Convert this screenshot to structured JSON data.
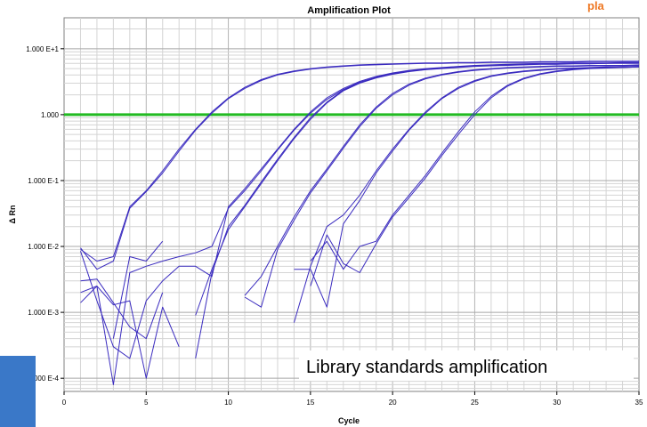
{
  "chart_data": {
    "type": "line",
    "title": "Amplification Plot",
    "xlabel": "Cycle",
    "ylabel": "Δ Rn",
    "xlim": [
      0,
      35
    ],
    "ylim": [
      5e-05,
      10
    ],
    "y_scale": "log",
    "grid": true,
    "x_ticks": [
      0,
      5,
      10,
      15,
      20,
      25,
      30,
      35
    ],
    "x_tick_labels": [
      "0",
      "5",
      "10",
      "15",
      "20",
      "25",
      "30",
      "35"
    ],
    "y_ticks": [
      10,
      1,
      0.1,
      0.01,
      0.001,
      0.0001
    ],
    "y_tick_labels": [
      "1.000 E+1",
      "1.000",
      "1.000 E-1",
      "1.000 E-2",
      "1.000 E-3",
      "1.000 E-4"
    ],
    "threshold": {
      "value": 1.0,
      "color": "#22bb22"
    },
    "series_color": "#3a2bbf",
    "annotation": "Library standards amplification",
    "header_fragment": {
      "text": "pla",
      "color": "#ee7722"
    },
    "accent_color": "#3a78c8",
    "series": [
      {
        "x": [
          1,
          2,
          3,
          4,
          5,
          6,
          7,
          8,
          9,
          10,
          11,
          12,
          13,
          14,
          15,
          16,
          17,
          18,
          19,
          20,
          21,
          22,
          23,
          24,
          25,
          26,
          27,
          28,
          29,
          30,
          31,
          32,
          33,
          34,
          35
        ],
        "y": [
          0.009,
          0.006,
          0.007,
          0.04,
          0.07,
          0.14,
          0.3,
          0.6,
          1.1,
          1.8,
          2.6,
          3.4,
          4.1,
          4.6,
          5.0,
          5.3,
          5.5,
          5.7,
          5.8,
          5.9,
          6.0,
          6.1,
          6.1,
          6.2,
          6.2,
          6.3,
          6.3,
          6.3,
          6.4,
          6.4,
          6.4,
          6.5,
          6.5,
          6.5,
          6.5
        ]
      },
      {
        "x": [
          1,
          2,
          3,
          4,
          5,
          6,
          7,
          8,
          9,
          10,
          11,
          12,
          13,
          14,
          15,
          16,
          17,
          18,
          19,
          20,
          21,
          22,
          23,
          24,
          25,
          26,
          27,
          28,
          29,
          30,
          31,
          32,
          33,
          34,
          35
        ],
        "y": [
          0.0095,
          0.0045,
          0.006,
          0.038,
          0.068,
          0.13,
          0.28,
          0.58,
          1.05,
          1.75,
          2.5,
          3.3,
          4.0,
          4.5,
          4.9,
          5.2,
          5.4,
          5.6,
          5.7,
          5.8,
          5.9,
          6.0,
          6.0,
          6.1,
          6.1,
          6.2,
          6.2,
          6.2,
          6.3,
          6.3,
          6.3,
          6.4,
          6.4,
          6.4,
          6.4
        ]
      },
      {
        "x": [
          1,
          2,
          3,
          4,
          5,
          6,
          7,
          8,
          9,
          10,
          11,
          12,
          13,
          14,
          15,
          16,
          17,
          18,
          19,
          20,
          21,
          22,
          23,
          24,
          25,
          26,
          27,
          28,
          29,
          30,
          31,
          32,
          33,
          34,
          35
        ],
        "y": [
          0.0085,
          0.0015,
          0.0003,
          0.0002,
          0.0015,
          0.003,
          0.005,
          0.005,
          0.0035,
          0.04,
          0.075,
          0.15,
          0.3,
          0.6,
          1.1,
          1.8,
          2.5,
          3.2,
          3.8,
          4.3,
          4.7,
          5.0,
          5.2,
          5.4,
          5.6,
          5.7,
          5.8,
          5.9,
          6.0,
          6.0,
          6.1,
          6.1,
          6.1,
          6.2,
          6.2
        ]
      },
      {
        "x": [
          1,
          2,
          3,
          4,
          5,
          6,
          7,
          8,
          9,
          10,
          11,
          12,
          13,
          14,
          15,
          16,
          17,
          18,
          19,
          20,
          21,
          22,
          23,
          24,
          25,
          26,
          27,
          28,
          29,
          30,
          31,
          32,
          33,
          34,
          35
        ],
        "y": [
          0.002,
          0.0025,
          8e-05,
          0.004,
          0.005,
          0.006,
          0.007,
          0.008,
          0.01,
          0.038,
          0.07,
          0.14,
          0.29,
          0.58,
          1.05,
          1.7,
          2.4,
          3.1,
          3.7,
          4.2,
          4.6,
          4.9,
          5.1,
          5.3,
          5.5,
          5.6,
          5.7,
          5.8,
          5.9,
          5.9,
          6.0,
          6.0,
          6.0,
          6.1,
          6.1
        ]
      },
      {
        "x": [
          8,
          9,
          10,
          11,
          12,
          13,
          14,
          15,
          16,
          17,
          18,
          19,
          20,
          21,
          22,
          23,
          24,
          25,
          26,
          27,
          28,
          29,
          30,
          31,
          32,
          33,
          34,
          35
        ],
        "y": [
          0.0009,
          0.0045,
          0.018,
          0.04,
          0.09,
          0.2,
          0.43,
          0.85,
          1.5,
          2.3,
          3.0,
          3.6,
          4.1,
          4.5,
          4.8,
          5.0,
          5.2,
          5.4,
          5.5,
          5.6,
          5.7,
          5.8,
          5.8,
          5.9,
          5.9,
          6.0,
          6.0,
          6.0
        ]
      },
      {
        "x": [
          8,
          9,
          10,
          11,
          12,
          13,
          14,
          15,
          16,
          17,
          18,
          19,
          20,
          21,
          22,
          23,
          24,
          25,
          26,
          27,
          28,
          29,
          30,
          31,
          32,
          33,
          34,
          35
        ],
        "y": [
          0.0002,
          0.004,
          0.02,
          0.042,
          0.095,
          0.21,
          0.45,
          0.9,
          1.55,
          2.35,
          3.05,
          3.65,
          4.15,
          4.55,
          4.85,
          5.05,
          5.25,
          5.45,
          5.55,
          5.65,
          5.75,
          5.85,
          5.85,
          5.95,
          5.95,
          6.05,
          6.05,
          6.05
        ]
      },
      {
        "x": [
          11,
          12,
          13,
          14,
          15,
          16,
          17,
          18,
          19,
          20,
          21,
          22,
          23,
          24,
          25,
          26,
          27,
          28,
          29,
          30,
          31,
          32,
          33,
          34,
          35
        ],
        "y": [
          0.0018,
          0.0035,
          0.01,
          0.028,
          0.07,
          0.15,
          0.33,
          0.7,
          1.3,
          2.1,
          2.9,
          3.6,
          4.1,
          4.5,
          4.8,
          5.0,
          5.2,
          5.3,
          5.4,
          5.5,
          5.5,
          5.6,
          5.6,
          5.6,
          5.7
        ]
      },
      {
        "x": [
          11,
          12,
          13,
          14,
          15,
          16,
          17,
          18,
          19,
          20,
          21,
          22,
          23,
          24,
          25,
          26,
          27,
          28,
          29,
          30,
          31,
          32,
          33,
          34,
          35
        ],
        "y": [
          0.0017,
          0.0012,
          0.009,
          0.025,
          0.065,
          0.14,
          0.31,
          0.66,
          1.25,
          2.0,
          2.8,
          3.5,
          4.0,
          4.4,
          4.7,
          4.9,
          5.1,
          5.2,
          5.3,
          5.4,
          5.4,
          5.5,
          5.5,
          5.5,
          5.6
        ]
      },
      {
        "x": [
          14,
          15,
          16,
          17,
          18,
          19,
          20,
          21,
          22,
          23,
          24,
          25,
          26,
          27,
          28,
          29,
          30,
          31,
          32,
          33,
          34,
          35
        ],
        "y": [
          0.0007,
          0.005,
          0.02,
          0.03,
          0.06,
          0.14,
          0.3,
          0.6,
          1.1,
          1.8,
          2.6,
          3.3,
          3.9,
          4.3,
          4.6,
          4.8,
          5.0,
          5.1,
          5.2,
          5.3,
          5.3,
          5.4
        ]
      },
      {
        "x": [
          14,
          15,
          16,
          17,
          18,
          19,
          20,
          21,
          22,
          23,
          24,
          25,
          26,
          27,
          28,
          29,
          30,
          31,
          32,
          33,
          34,
          35
        ],
        "y": [
          0.0045,
          0.0045,
          0.0012,
          0.022,
          0.05,
          0.13,
          0.28,
          0.58,
          1.05,
          1.75,
          2.5,
          3.2,
          3.8,
          4.2,
          4.5,
          4.7,
          4.9,
          5.0,
          5.1,
          5.2,
          5.2,
          5.3
        ]
      },
      {
        "x": [
          15,
          16,
          17,
          18,
          19,
          20,
          21,
          22,
          23,
          24,
          25,
          26,
          27,
          28,
          29,
          30,
          31,
          32,
          33,
          34,
          35
        ],
        "y": [
          0.006,
          0.012,
          0.0045,
          0.01,
          0.012,
          0.03,
          0.06,
          0.12,
          0.26,
          0.55,
          1.1,
          1.9,
          2.8,
          3.6,
          4.2,
          4.6,
          4.9,
          5.1,
          5.2,
          5.3,
          5.4
        ]
      },
      {
        "x": [
          15,
          16,
          17,
          18,
          19,
          20,
          21,
          22,
          23,
          24,
          25,
          26,
          27,
          28,
          29,
          30,
          31,
          32,
          33,
          34,
          35
        ],
        "y": [
          0.0025,
          0.015,
          0.0055,
          0.004,
          0.011,
          0.028,
          0.055,
          0.11,
          0.24,
          0.5,
          1.0,
          1.8,
          2.7,
          3.5,
          4.1,
          4.5,
          4.8,
          5.0,
          5.1,
          5.2,
          5.3
        ]
      },
      {
        "x": [
          1,
          2,
          3,
          4,
          5,
          6,
          7
        ],
        "y": [
          0.0014,
          0.0025,
          0.0013,
          0.0015,
          0.0001,
          0.0012,
          0.0003
        ]
      },
      {
        "x": [
          1,
          2,
          3,
          4,
          5,
          6
        ],
        "y": [
          0.003,
          0.0032,
          0.0014,
          0.0006,
          0.0004,
          0.002
        ]
      },
      {
        "x": [
          3,
          4,
          5,
          6
        ],
        "y": [
          0.0004,
          0.007,
          0.006,
          0.012
        ]
      }
    ]
  }
}
